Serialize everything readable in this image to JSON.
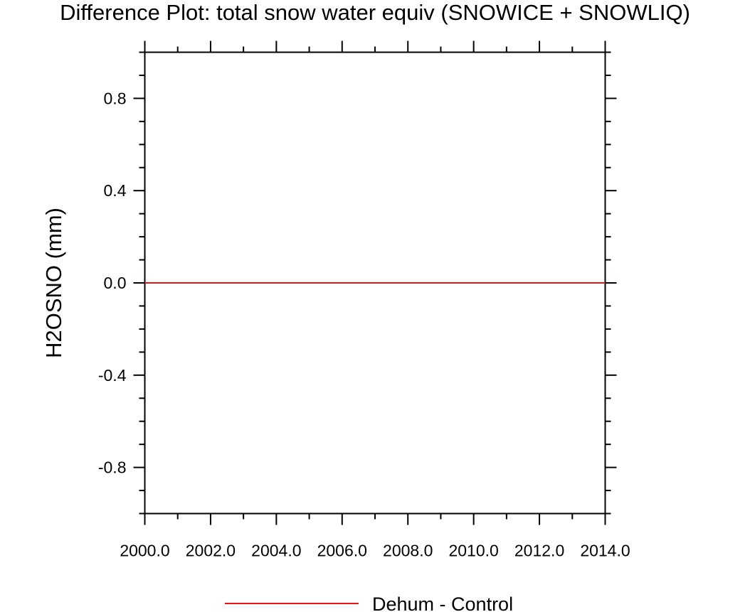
{
  "chart_data": {
    "type": "line",
    "title": "Difference Plot: total snow water equiv (SNOWICE + SNOWLIQ)",
    "xlabel": "",
    "ylabel": "H2OSNO  (mm)",
    "xlim": [
      2000.0,
      2014.0
    ],
    "ylim": [
      -1.0,
      1.0
    ],
    "x_ticks": [
      2000.0,
      2002.0,
      2004.0,
      2006.0,
      2008.0,
      2010.0,
      2012.0,
      2014.0
    ],
    "x_tick_labels": [
      "2000.0",
      "2002.0",
      "2004.0",
      "2006.0",
      "2008.0",
      "2010.0",
      "2012.0",
      "2014.0"
    ],
    "x_minor_step": 1.0,
    "y_ticks": [
      -0.8,
      -0.4,
      0.0,
      0.4,
      0.8
    ],
    "y_tick_labels": [
      "-0.8",
      "-0.4",
      "0.0",
      "0.4",
      "0.8"
    ],
    "y_minor_step": 0.1,
    "grid": false,
    "legend_position": "bottom-center",
    "series": [
      {
        "name": "Dehum - Control",
        "color": "#e8161b",
        "x": [
          2000.0,
          2001.0,
          2002.0,
          2003.0,
          2004.0,
          2005.0,
          2006.0,
          2007.0,
          2008.0,
          2009.0,
          2010.0,
          2011.0,
          2012.0,
          2013.0,
          2014.0
        ],
        "y": [
          0.0,
          0.0,
          0.0,
          0.0,
          0.0,
          0.0,
          0.0,
          0.0,
          0.0,
          0.0,
          0.0,
          0.0,
          0.0,
          0.0,
          0.0
        ]
      }
    ]
  }
}
